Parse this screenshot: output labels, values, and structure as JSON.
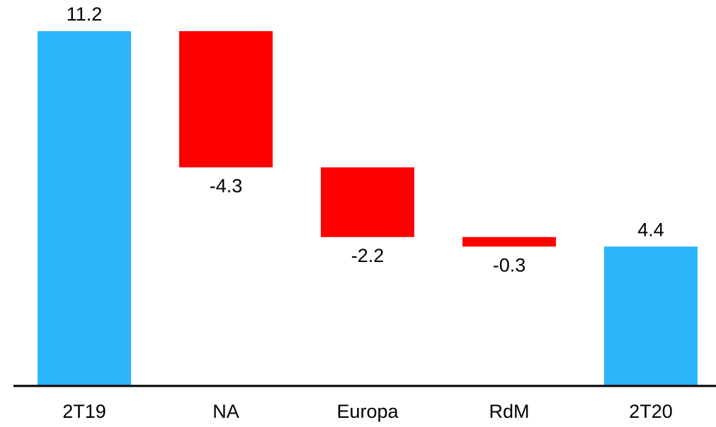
{
  "chart_data": {
    "type": "waterfall",
    "categories": [
      "2T19",
      "NA",
      "Europa",
      "RdM",
      "2T20"
    ],
    "values": [
      11.2,
      -4.3,
      -2.2,
      -0.3,
      4.4
    ],
    "measure": [
      "absolute",
      "relative",
      "relative",
      "relative",
      "total"
    ],
    "colors": [
      "#2db5fc",
      "#ff0000",
      "#ff0000",
      "#ff0000",
      "#2db5fc"
    ]
  }
}
